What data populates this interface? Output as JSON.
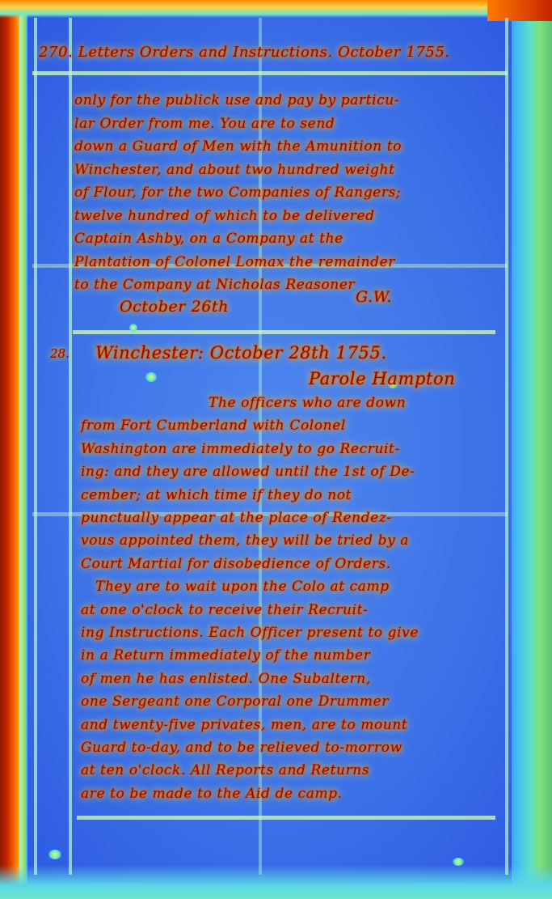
{
  "page": {
    "header": "270. Letters Orders and Instructions. October 1755.",
    "body_lines_1": [
      "only for the publick use and pay by particu-",
      "lar Order from me.   You are to send",
      "down a Guard of Men with the Amunition to",
      "Winchester, and about two hundred weight",
      "of Flour, for the two Companies of Rangers;",
      "twelve hundred of which to be delivered",
      "Captain Ashby, on a Company at the",
      "Plantation of Colonel Lomax  the remainder",
      "to the Company at Nicholas Reasoner"
    ],
    "sign_date": "October 26th",
    "sign_initials": "G.W.",
    "margin_number": "28.",
    "title": "Winchester: October 28th 1755.",
    "addressee": "Parole Hampton",
    "body_lines_2": [
      "The officers who are down",
      "from Fort Cumberland with Colonel",
      "Washington are immediately to go Recruit-",
      "ing: and they are allowed until the 1st of De-",
      "cember; at which time if they do not",
      "punctually appear at the place of Rendez-",
      "vous appointed them, they will be tried by a",
      "Court Martial for disobedience of Orders.",
      "They are to wait upon the Colo at camp",
      "at one o'clock to receive their Recruit-",
      "ing Instructions. Each Officer present to give",
      "in a Return immediately of the number",
      "of men he has enlisted.   One Subaltern,",
      "one Sergeant one Corporal one Drummer",
      "and twenty-five privates, men, are to mount",
      "Guard to-day, and to be relieved to-morrow",
      "at ten o'clock.   All Reports and Returns",
      "are to be made to the Aid de camp."
    ]
  },
  "colors": {
    "ink_core": "#7a1400",
    "ink_glow": "#ff5a00",
    "paper": "#3d72e8",
    "rule": "#aef2d8"
  }
}
